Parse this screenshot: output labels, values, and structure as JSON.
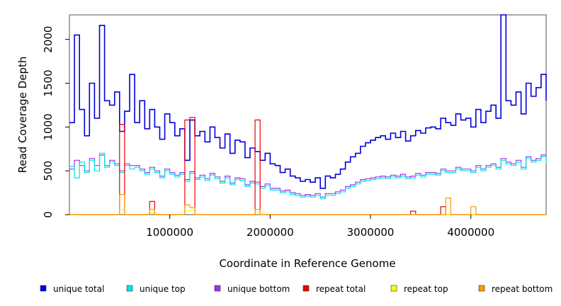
{
  "chart_data": {
    "type": "line",
    "title": "",
    "xlabel": "Coordinate in Reference Genome",
    "ylabel": "Read Coverage Depth",
    "xlim": [
      0,
      4750000
    ],
    "ylim": [
      0,
      2280
    ],
    "x_ticks": [
      1000000,
      2000000,
      3000000,
      4000000
    ],
    "x_tick_labels": [
      "1000000",
      "2000000",
      "3000000",
      "4000000"
    ],
    "y_ticks": [
      0,
      500,
      1000,
      1500,
      2000
    ],
    "y_tick_labels": [
      "0",
      "500",
      "1000",
      "1500",
      "2000"
    ],
    "grid": false,
    "legend_position": "bottom",
    "legend": [
      {
        "label": "unique total",
        "color": "#0000dd"
      },
      {
        "label": "unique top",
        "color": "#00e5e5"
      },
      {
        "label": "unique bottom",
        "color": "#a030f0"
      },
      {
        "label": "repeat total",
        "color": "#ee0000"
      },
      {
        "label": "repeat top",
        "color": "#ffff00"
      },
      {
        "label": "repeat bottom",
        "color": "#ff9900"
      }
    ],
    "x": [
      0,
      50000,
      100000,
      150000,
      200000,
      250000,
      300000,
      350000,
      400000,
      450000,
      500000,
      550000,
      600000,
      650000,
      700000,
      750000,
      800000,
      850000,
      900000,
      950000,
      1000000,
      1050000,
      1100000,
      1150000,
      1200000,
      1250000,
      1300000,
      1350000,
      1400000,
      1450000,
      1500000,
      1550000,
      1600000,
      1650000,
      1700000,
      1750000,
      1800000,
      1850000,
      1900000,
      1950000,
      2000000,
      2050000,
      2100000,
      2150000,
      2200000,
      2250000,
      2300000,
      2350000,
      2400000,
      2450000,
      2500000,
      2550000,
      2600000,
      2650000,
      2700000,
      2750000,
      2800000,
      2850000,
      2900000,
      2950000,
      3000000,
      3050000,
      3100000,
      3150000,
      3200000,
      3250000,
      3300000,
      3350000,
      3400000,
      3450000,
      3500000,
      3550000,
      3600000,
      3650000,
      3700000,
      3750000,
      3800000,
      3850000,
      3900000,
      3950000,
      4000000,
      4050000,
      4100000,
      4150000,
      4200000,
      4250000,
      4300000,
      4350000,
      4400000,
      4450000,
      4500000,
      4550000,
      4600000,
      4650000,
      4700000,
      4750000
    ],
    "series": [
      {
        "name": "unique total",
        "color": "#0000dd",
        "values": [
          1050,
          2050,
          1200,
          900,
          1500,
          1100,
          2160,
          1300,
          1250,
          1400,
          950,
          1180,
          1600,
          1050,
          1300,
          980,
          1200,
          1000,
          860,
          1150,
          1050,
          900,
          980,
          620,
          1080,
          900,
          950,
          830,
          1000,
          880,
          760,
          920,
          700,
          850,
          830,
          650,
          760,
          720,
          620,
          700,
          580,
          560,
          480,
          520,
          440,
          420,
          380,
          400,
          370,
          420,
          300,
          440,
          420,
          460,
          520,
          600,
          660,
          700,
          780,
          820,
          850,
          880,
          900,
          860,
          930,
          880,
          950,
          840,
          900,
          960,
          930,
          990,
          1000,
          980,
          1100,
          1050,
          1020,
          1150,
          1080,
          1100,
          1000,
          1200,
          1050,
          1180,
          1250,
          1100,
          2280,
          1300,
          1250,
          1400,
          1150,
          1500,
          1350,
          1450,
          1600,
          1300
        ]
      },
      {
        "name": "unique top",
        "color": "#00e5e5",
        "values": [
          550,
          420,
          600,
          480,
          620,
          500,
          700,
          540,
          600,
          560,
          480,
          560,
          520,
          540,
          500,
          460,
          520,
          480,
          420,
          500,
          460,
          430,
          460,
          380,
          470,
          400,
          430,
          390,
          450,
          410,
          360,
          420,
          340,
          400,
          390,
          320,
          360,
          350,
          300,
          330,
          280,
          280,
          250,
          260,
          230,
          220,
          200,
          210,
          200,
          220,
          180,
          220,
          220,
          240,
          260,
          300,
          320,
          350,
          380,
          390,
          400,
          410,
          420,
          410,
          430,
          420,
          440,
          410,
          420,
          450,
          430,
          460,
          460,
          450,
          500,
          480,
          480,
          520,
          500,
          500,
          480,
          540,
          500,
          540,
          560,
          520,
          620,
          580,
          560,
          600,
          520,
          640,
          600,
          620,
          660,
          580
        ]
      },
      {
        "name": "unique bottom",
        "color": "#a030f0",
        "values": [
          520,
          620,
          560,
          500,
          640,
          560,
          680,
          560,
          620,
          580,
          500,
          580,
          560,
          560,
          520,
          480,
          540,
          500,
          440,
          520,
          480,
          450,
          480,
          400,
          490,
          420,
          450,
          410,
          470,
          430,
          380,
          440,
          360,
          420,
          410,
          340,
          380,
          370,
          320,
          350,
          300,
          300,
          270,
          280,
          250,
          240,
          220,
          230,
          220,
          240,
          200,
          240,
          240,
          260,
          280,
          320,
          340,
          370,
          400,
          410,
          420,
          430,
          440,
          430,
          450,
          440,
          460,
          430,
          440,
          470,
          450,
          480,
          480,
          470,
          520,
          500,
          500,
          540,
          520,
          520,
          500,
          560,
          520,
          560,
          580,
          540,
          640,
          600,
          580,
          620,
          540,
          660,
          620,
          640,
          680,
          600
        ]
      },
      {
        "name": "repeat total",
        "color": "#ee0000",
        "values": [
          0,
          0,
          0,
          0,
          0,
          0,
          0,
          0,
          0,
          0,
          1030,
          0,
          0,
          0,
          0,
          0,
          150,
          0,
          0,
          0,
          0,
          0,
          0,
          1080,
          1110,
          0,
          0,
          0,
          0,
          0,
          0,
          0,
          0,
          0,
          0,
          0,
          0,
          1080,
          0,
          0,
          0,
          0,
          0,
          0,
          0,
          0,
          0,
          0,
          0,
          0,
          0,
          0,
          0,
          0,
          0,
          0,
          0,
          0,
          0,
          0,
          0,
          0,
          0,
          0,
          0,
          0,
          0,
          0,
          40,
          0,
          0,
          0,
          0,
          0,
          90,
          0,
          0,
          0,
          0,
          0,
          0,
          0,
          0,
          0,
          0,
          0,
          0,
          0,
          0,
          0,
          0,
          0,
          0,
          0,
          0,
          0
        ]
      },
      {
        "name": "repeat top",
        "color": "#ffff00",
        "values": [
          0,
          0,
          0,
          0,
          0,
          0,
          0,
          0,
          0,
          0,
          60,
          0,
          0,
          0,
          0,
          0,
          20,
          0,
          0,
          0,
          0,
          0,
          0,
          40,
          50,
          0,
          0,
          0,
          0,
          0,
          0,
          0,
          0,
          0,
          0,
          0,
          0,
          30,
          0,
          0,
          0,
          0,
          0,
          0,
          0,
          0,
          0,
          0,
          0,
          0,
          0,
          0,
          0,
          0,
          0,
          0,
          0,
          0,
          0,
          0,
          0,
          0,
          0,
          0,
          0,
          0,
          0,
          0,
          0,
          0,
          0,
          0,
          0,
          0,
          0,
          0,
          0,
          0,
          0,
          0,
          0,
          0,
          0,
          0,
          0,
          0,
          0,
          0,
          0,
          0,
          0,
          0,
          0,
          0,
          0,
          0
        ]
      },
      {
        "name": "repeat bottom",
        "color": "#ff9900",
        "values": [
          0,
          0,
          0,
          0,
          0,
          0,
          0,
          0,
          0,
          0,
          230,
          0,
          0,
          0,
          0,
          0,
          60,
          0,
          0,
          0,
          0,
          0,
          0,
          110,
          80,
          0,
          0,
          0,
          0,
          0,
          0,
          0,
          0,
          0,
          0,
          0,
          0,
          60,
          0,
          0,
          0,
          0,
          0,
          0,
          0,
          0,
          0,
          0,
          0,
          0,
          0,
          0,
          0,
          0,
          0,
          0,
          0,
          0,
          0,
          0,
          0,
          0,
          0,
          0,
          0,
          0,
          0,
          0,
          0,
          0,
          0,
          0,
          0,
          0,
          0,
          190,
          0,
          0,
          0,
          0,
          90,
          0,
          0,
          0,
          0,
          0,
          0,
          0,
          0,
          0,
          0,
          0,
          0,
          0,
          0,
          0
        ]
      }
    ]
  }
}
